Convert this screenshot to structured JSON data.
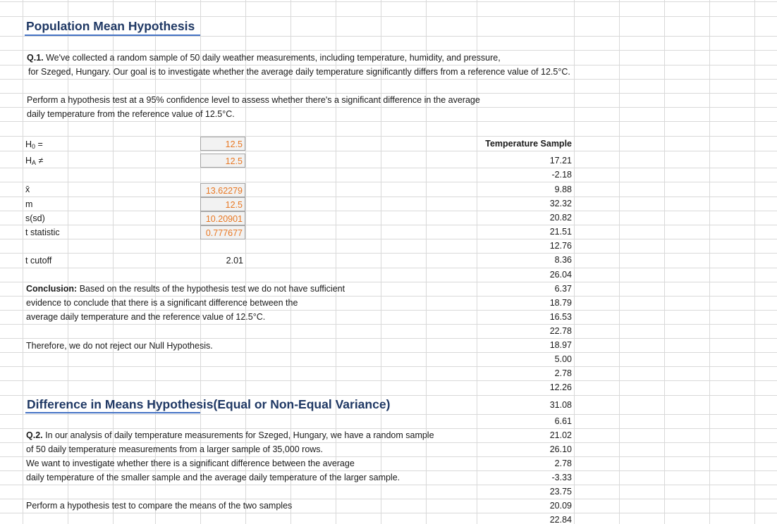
{
  "section1": {
    "title": "Population Mean Hypothesis",
    "q_label": "Q.1.",
    "q_line1": " We've collected a random sample of 50 daily weather measurements, including temperature, humidity, and pressure,",
    "q_line2": "for Szeged, Hungary. Our goal is to investigate whether the average daily temperature significantly differs from a reference value of 12.5°C.",
    "task_line1": "Perform a hypothesis test at a 95% confidence level to assess whether there's a significant difference in the average",
    "task_line2": "daily temperature from the reference value of 12.5°C.",
    "h0_label": "H",
    "h0_sub": "0",
    "h0_suffix": " =",
    "h0_value": "12.5",
    "ha_label": "H",
    "ha_sub": "A",
    "ha_suffix": " ≠",
    "ha_value": "12.5",
    "xbar_label": "x̄",
    "xbar_value": "13.62279",
    "m_label": "m",
    "m_value": "12.5",
    "sd_label": "s(sd)",
    "sd_value": "10.20901",
    "t_label": "t statistic",
    "t_value": "0.777677",
    "tcut_label": "t cutoff",
    "tcut_value": "2.01",
    "conclusion_label": "Conclusion:",
    "conclusion_line1": " Based on the results of the hypothesis test we do not have sufficient",
    "conclusion_line2": "evidence to conclude that there is a significant difference between the",
    "conclusion_line3": "average daily temperature and the reference value of 12.5°C.",
    "therefore": "Therefore, we do not reject our Null Hypothesis."
  },
  "section2": {
    "title": "Difference in Means Hypothesis(Equal or Non-Equal Variance)",
    "q_label": "Q.2.",
    "q_line1": " In our analysis of daily temperature measurements for Szeged, Hungary, we have a random sample",
    "q_line2": "of 50 daily temperature measurements from a larger sample of 35,000 rows.",
    "q_line3": "We want to investigate whether there is a significant difference between the average",
    "q_line4": "daily temperature of the smaller sample and the average daily temperature of the larger sample.",
    "task_line1": "Perform a hypothesis test to compare the means of the two samples"
  },
  "temperature": {
    "header": "Temperature Sample",
    "values": [
      "17.21",
      "-2.18",
      "9.88",
      "32.32",
      "20.82",
      "21.51",
      "12.76",
      "8.36",
      "26.04",
      "6.37",
      "18.79",
      "16.53",
      "22.78",
      "18.97",
      "5.00",
      "2.78",
      "12.26",
      "31.08",
      "6.61",
      "21.02",
      "26.10",
      "2.78",
      "-3.33",
      "23.75",
      "20.09",
      "22.84"
    ]
  },
  "colors": {
    "title": "#1f3864",
    "underline": "#4472c4",
    "calc_text": "#e87722",
    "grid": "#d9d9d9"
  }
}
